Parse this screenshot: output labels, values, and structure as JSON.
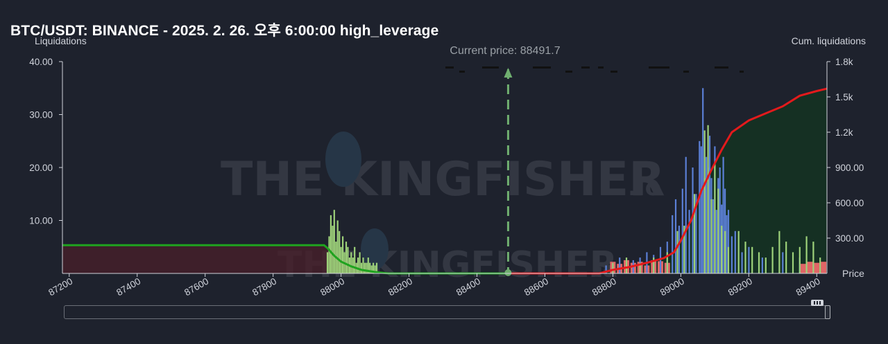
{
  "title": "BTC/USDT: BINANCE - 2025. 2. 26. 오후 6:00:00 high_leverage",
  "watermark": {
    "text": "THE KINGFISHER",
    "suffix": ".io"
  },
  "colors": {
    "background": "#1e222d",
    "cum_short": "#e31a1c",
    "cum_long": "#1fa31f",
    "bars_blue": "#5b7fd6",
    "bars_green": "#9ed27a",
    "bars_red": "#e06666",
    "current_price": "#6fae6f"
  },
  "chart_data": {
    "type": "bar",
    "xlabel": "Price",
    "ylabel_left": "Liquidations",
    "ylabel_right": "Cum. liquidations",
    "xlim": [
      87180,
      89430
    ],
    "ylim_left": [
      0,
      40
    ],
    "ylim_right": [
      0,
      1800
    ],
    "x_ticks": [
      "87200",
      "87400",
      "87600",
      "87800",
      "88000",
      "88200",
      "88400",
      "88600",
      "88800",
      "89000",
      "89200",
      "89400"
    ],
    "y_ticks_left": [
      "10.00",
      "20.00",
      "30.00",
      "40.00"
    ],
    "y_ticks_right": [
      "300.00",
      "600.00",
      "900.00",
      "1.2k",
      "1.5k",
      "1.8k"
    ],
    "current_price": {
      "label": "Current price: 88491.7",
      "value": 88491.7
    },
    "cum_long": {
      "x": [
        87180,
        87950,
        87960,
        87980,
        88000,
        88030,
        88060,
        88100,
        88140,
        88491.7
      ],
      "y": [
        240,
        240,
        215,
        150,
        100,
        60,
        30,
        12,
        0,
        0
      ]
    },
    "cum_short": {
      "x": [
        88491.7,
        88760,
        88800,
        88850,
        88900,
        88950,
        88980,
        89000,
        89030,
        89060,
        89090,
        89120,
        89150,
        89200,
        89250,
        89300,
        89350,
        89400,
        89430
      ],
      "y": [
        0,
        0,
        30,
        55,
        90,
        130,
        180,
        280,
        450,
        700,
        880,
        1050,
        1200,
        1300,
        1360,
        1420,
        1510,
        1550,
        1570
      ]
    },
    "bars_long": {
      "x": [
        87960,
        87965,
        87970,
        87975,
        87980,
        87985,
        87990,
        87995,
        88000,
        88005,
        88010,
        88015,
        88020,
        88025,
        88030,
        88035,
        88040,
        88045,
        88050,
        88055,
        88060,
        88065,
        88070,
        88075,
        88080,
        88085,
        88090,
        88095,
        88100,
        88105
      ],
      "y": [
        4,
        7,
        11,
        9,
        12,
        6,
        10,
        8,
        5,
        7,
        4,
        6,
        5,
        3,
        4,
        3,
        5,
        2,
        3,
        4,
        2,
        3,
        2,
        2,
        3,
        2,
        1.5,
        2,
        1.5,
        2
      ]
    },
    "bars_short_blue": {
      "x": [
        88780,
        88800,
        88820,
        88860,
        88880,
        88900,
        88920,
        88940,
        88960,
        88975,
        88985,
        88995,
        89005,
        89015,
        89025,
        89035,
        89045,
        89055,
        89060,
        89065,
        89070,
        89075,
        89080,
        89085,
        89090,
        89095,
        89100,
        89105,
        89110,
        89115,
        89120,
        89125,
        89130,
        89135,
        89140,
        89150,
        89160,
        89180,
        89200,
        89240,
        89300,
        89350
      ],
      "y": [
        1.5,
        2,
        3,
        2.5,
        3,
        4,
        3.5,
        5,
        6,
        11,
        14,
        9,
        16,
        22,
        12,
        20,
        15,
        25,
        24,
        35,
        18,
        22,
        20,
        26,
        18,
        14,
        24,
        12,
        18,
        20,
        13,
        22,
        16,
        11,
        12,
        7,
        8,
        4,
        5,
        3,
        4,
        3
      ]
    },
    "bars_short_green": {
      "x": [
        88800,
        88840,
        88880,
        88920,
        88960,
        88990,
        89010,
        89040,
        89070,
        89080,
        89090,
        89100,
        89110,
        89120,
        89130,
        89140,
        89170,
        89190,
        89210,
        89230,
        89250,
        89270,
        89290,
        89310,
        89330,
        89350,
        89370,
        89390,
        89410
      ],
      "y": [
        2,
        3,
        2,
        3,
        4,
        8,
        9,
        15,
        27,
        28,
        14,
        21,
        16,
        9,
        8,
        5,
        8,
        6,
        5,
        4,
        3,
        5,
        8,
        6,
        4,
        5,
        7,
        6,
        3
      ]
    },
    "bars_short_red": {
      "x": [
        88800,
        88820,
        88840,
        88860,
        88880,
        88900,
        88920,
        88940,
        88960,
        89360,
        89380,
        89400,
        89420
      ],
      "y": [
        2.2,
        1.8,
        2.5,
        2,
        2.2,
        1.5,
        2.5,
        2.3,
        2,
        1.8,
        2.2,
        2,
        2.2
      ]
    }
  }
}
